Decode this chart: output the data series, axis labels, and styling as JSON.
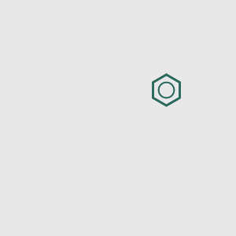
{
  "background_color": "#e8e8e8",
  "bond_color": "#2d6b5e",
  "cl_color": "#00aa00",
  "n_color": "#0000cc",
  "o_color": "#cc0000",
  "h_color": "#888888",
  "line_width": 1.8,
  "figsize": [
    3.0,
    3.0
  ],
  "dpi": 100
}
